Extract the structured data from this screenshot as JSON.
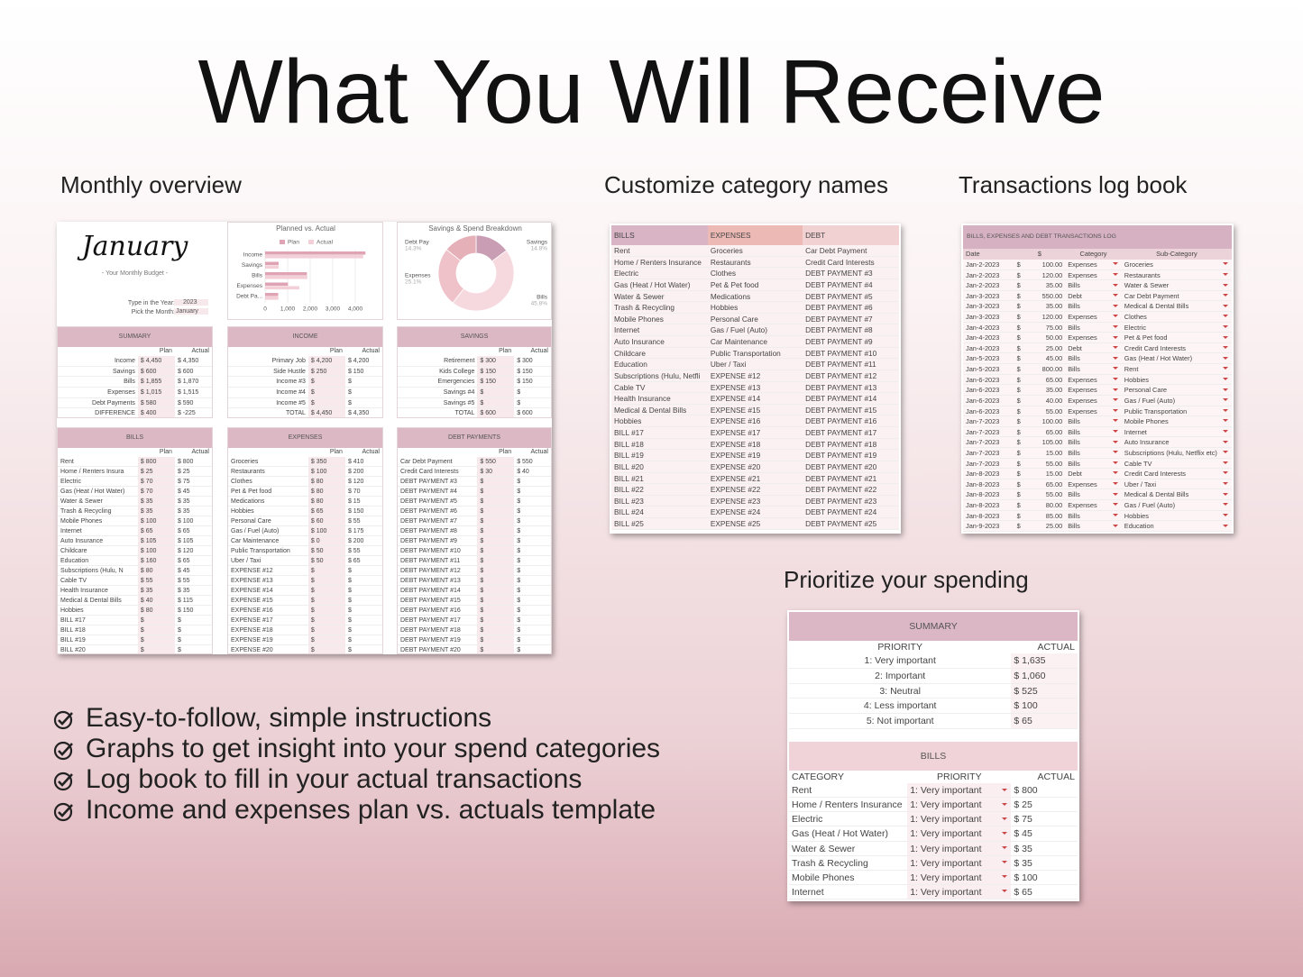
{
  "header": {
    "title": "What You Will Receive"
  },
  "monthly_overview": {
    "label": "Monthly overview",
    "card": {
      "month": "January",
      "subtitle": "- Your Monthly Budget -",
      "year_label": "Type in the Year:",
      "year": "2023",
      "month_label": "Pick the Month:",
      "month_value": "January"
    },
    "plan_chart": {
      "title": "Planned vs. Actual",
      "categories": [
        "Income",
        "Savings",
        "Bills",
        "Expenses",
        "Debt Pa..."
      ],
      "series": [
        {
          "name": "Plan",
          "color": "#dfa3b3",
          "values": [
            4450,
            600,
            1855,
            1015,
            580
          ]
        },
        {
          "name": "Actual",
          "color": "#f3cfd7",
          "values": [
            4350,
            600,
            1870,
            1515,
            590
          ]
        }
      ],
      "xlim": [
        0,
        4500
      ],
      "xticks": [
        0,
        {
          "value": 1000,
          "label": "1,000"
        },
        {
          "value": 2000,
          "label": "2,000"
        },
        {
          "value": 3000,
          "label": "3,000"
        },
        {
          "value": 4000,
          "label": "4,000"
        }
      ]
    },
    "breakdown_chart": {
      "title": "Savings & Spend Breakdown",
      "categories": [
        "Savings",
        "Bills",
        "Expenses",
        "Debt Pay"
      ],
      "values": [
        14.8,
        45.8,
        25.1,
        14.3
      ],
      "value_labels": [
        "14.8%",
        "45.8%",
        "25.1%",
        "14.3%"
      ],
      "colors": [
        "#c99db4",
        "#f6d9de",
        "#efc2c9",
        "#e6b0b8"
      ]
    },
    "summary": {
      "title": "SUMMARY",
      "columns": [
        "Plan",
        "Actual"
      ],
      "rows": [
        [
          "Income",
          "$ 4,450",
          "$ 4,350"
        ],
        [
          "Savings",
          "$ 600",
          "$ 600"
        ],
        [
          "Bills",
          "$ 1,855",
          "$ 1,870"
        ],
        [
          "Expenses",
          "$ 1,015",
          "$ 1,515"
        ],
        [
          "Debt Payments",
          "$ 580",
          "$ 590"
        ],
        [
          "DIFFERENCE",
          "$ 400",
          "$ -225"
        ]
      ]
    },
    "income": {
      "title": "INCOME",
      "columns": [
        "Plan",
        "Actual"
      ],
      "rows": [
        [
          "Primary Job",
          "$ 4,200",
          "$ 4,200"
        ],
        [
          "Side Hustle",
          "$ 250",
          "$ 150"
        ],
        [
          "Income #3",
          "$",
          "$"
        ],
        [
          "Income #4",
          "$",
          "$"
        ],
        [
          "Income #5",
          "$",
          "$"
        ],
        [
          "TOTAL",
          "$ 4,450",
          "$ 4,350"
        ]
      ]
    },
    "savings": {
      "title": "SAVINGS",
      "columns": [
        "Plan",
        "Actual"
      ],
      "rows": [
        [
          "Retirement",
          "$ 300",
          "$ 300"
        ],
        [
          "Kids College",
          "$ 150",
          "$ 150"
        ],
        [
          "Emergencies",
          "$ 150",
          "$ 150"
        ],
        [
          "Savings #4",
          "$",
          "$"
        ],
        [
          "Savings #5",
          "$",
          "$"
        ],
        [
          "TOTAL",
          "$ 600",
          "$ 600"
        ]
      ]
    },
    "bills": {
      "title": "BILLS",
      "columns": [
        "Plan",
        "Actual"
      ],
      "rows": [
        [
          "Rent",
          "$ 800",
          "$ 800"
        ],
        [
          "Home / Renters Insura",
          "$ 25",
          "$ 25"
        ],
        [
          "Electric",
          "$ 70",
          "$ 75"
        ],
        [
          "Gas (Heat / Hot Water)",
          "$ 70",
          "$ 45"
        ],
        [
          "Water & Sewer",
          "$ 35",
          "$ 35"
        ],
        [
          "Trash & Recycling",
          "$ 35",
          "$ 35"
        ],
        [
          "Mobile Phones",
          "$ 100",
          "$ 100"
        ],
        [
          "Internet",
          "$ 65",
          "$ 65"
        ],
        [
          "Auto Insurance",
          "$ 105",
          "$ 105"
        ],
        [
          "Childcare",
          "$ 100",
          "$ 120"
        ],
        [
          "Education",
          "$ 160",
          "$ 65"
        ],
        [
          "Subscriptions (Hulu, N",
          "$ 80",
          "$ 45"
        ],
        [
          "Cable TV",
          "$ 55",
          "$ 55"
        ],
        [
          "Health Insurance",
          "$ 35",
          "$ 35"
        ],
        [
          "Medical & Dental Bills",
          "$ 40",
          "$ 115"
        ],
        [
          "Hobbies",
          "$ 80",
          "$ 150"
        ],
        [
          "BILL #17",
          "$",
          "$"
        ],
        [
          "BILL #18",
          "$",
          "$"
        ],
        [
          "BILL #19",
          "$",
          "$"
        ],
        [
          "BILL #20",
          "$",
          "$"
        ]
      ]
    },
    "expenses": {
      "title": "EXPENSES",
      "columns": [
        "Plan",
        "Actual"
      ],
      "rows": [
        [
          "Groceries",
          "$ 350",
          "$ 410"
        ],
        [
          "Restaurants",
          "$ 100",
          "$ 200"
        ],
        [
          "Clothes",
          "$ 80",
          "$ 120"
        ],
        [
          "Pet & Pet food",
          "$ 80",
          "$ 70"
        ],
        [
          "Medications",
          "$ 80",
          "$ 15"
        ],
        [
          "Hobbies",
          "$ 65",
          "$ 150"
        ],
        [
          "Personal Care",
          "$ 60",
          "$ 55"
        ],
        [
          "Gas / Fuel (Auto)",
          "$ 100",
          "$ 175"
        ],
        [
          "Car Maintenance",
          "$ 0",
          "$ 200"
        ],
        [
          "Public Transportation",
          "$ 50",
          "$ 55"
        ],
        [
          "Uber / Taxi",
          "$ 50",
          "$ 65"
        ],
        [
          "EXPENSE #12",
          "$",
          "$"
        ],
        [
          "EXPENSE #13",
          "$",
          "$"
        ],
        [
          "EXPENSE #14",
          "$",
          "$"
        ],
        [
          "EXPENSE #15",
          "$",
          "$"
        ],
        [
          "EXPENSE #16",
          "$",
          "$"
        ],
        [
          "EXPENSE #17",
          "$",
          "$"
        ],
        [
          "EXPENSE #18",
          "$",
          "$"
        ],
        [
          "EXPENSE #19",
          "$",
          "$"
        ],
        [
          "EXPENSE #20",
          "$",
          "$"
        ]
      ]
    },
    "debt_payments": {
      "title": "DEBT PAYMENTS",
      "columns": [
        "Plan",
        "Actual"
      ],
      "rows": [
        [
          "Car Debt Payment",
          "$ 550",
          "$ 550"
        ],
        [
          "Credit Card Interests",
          "$ 30",
          "$ 40"
        ],
        [
          "DEBT PAYMENT #3",
          "$",
          "$"
        ],
        [
          "DEBT PAYMENT #4",
          "$",
          "$"
        ],
        [
          "DEBT PAYMENT #5",
          "$",
          "$"
        ],
        [
          "DEBT PAYMENT #6",
          "$",
          "$"
        ],
        [
          "DEBT PAYMENT #7",
          "$",
          "$"
        ],
        [
          "DEBT PAYMENT #8",
          "$",
          "$"
        ],
        [
          "DEBT PAYMENT #9",
          "$",
          "$"
        ],
        [
          "DEBT PAYMENT #10",
          "$",
          "$"
        ],
        [
          "DEBT PAYMENT #11",
          "$",
          "$"
        ],
        [
          "DEBT PAYMENT #12",
          "$",
          "$"
        ],
        [
          "DEBT PAYMENT #13",
          "$",
          "$"
        ],
        [
          "DEBT PAYMENT #14",
          "$",
          "$"
        ],
        [
          "DEBT PAYMENT #15",
          "$",
          "$"
        ],
        [
          "DEBT PAYMENT #16",
          "$",
          "$"
        ],
        [
          "DEBT PAYMENT #17",
          "$",
          "$"
        ],
        [
          "DEBT PAYMENT #18",
          "$",
          "$"
        ],
        [
          "DEBT PAYMENT #19",
          "$",
          "$"
        ],
        [
          "DEBT PAYMENT #20",
          "$",
          "$"
        ]
      ]
    }
  },
  "category_names": {
    "label": "Customize category names",
    "table": {
      "columns": [
        "BILLS",
        "EXPENSES",
        "DEBT"
      ],
      "rows": [
        [
          "Rent",
          "Groceries",
          "Car Debt Payment"
        ],
        [
          "Home / Renters Insurance",
          "Restaurants",
          "Credit Card Interests"
        ],
        [
          "Electric",
          "Clothes",
          "DEBT PAYMENT #3"
        ],
        [
          "Gas (Heat / Hot Water)",
          "Pet & Pet food",
          "DEBT PAYMENT #4"
        ],
        [
          "Water & Sewer",
          "Medications",
          "DEBT PAYMENT #5"
        ],
        [
          "Trash & Recycling",
          "Hobbies",
          "DEBT PAYMENT #6"
        ],
        [
          "Mobile Phones",
          "Personal Care",
          "DEBT PAYMENT #7"
        ],
        [
          "Internet",
          "Gas / Fuel (Auto)",
          "DEBT PAYMENT #8"
        ],
        [
          "Auto Insurance",
          "Car Maintenance",
          "DEBT PAYMENT #9"
        ],
        [
          "Childcare",
          "Public Transportation",
          "DEBT PAYMENT #10"
        ],
        [
          "Education",
          "Uber / Taxi",
          "DEBT PAYMENT #11"
        ],
        [
          "Subscriptions (Hulu, Netfli",
          "EXPENSE #12",
          "DEBT PAYMENT #12"
        ],
        [
          "Cable TV",
          "EXPENSE #13",
          "DEBT PAYMENT #13"
        ],
        [
          "Health Insurance",
          "EXPENSE #14",
          "DEBT PAYMENT #14"
        ],
        [
          "Medical & Dental Bills",
          "EXPENSE #15",
          "DEBT PAYMENT #15"
        ],
        [
          "Hobbies",
          "EXPENSE #16",
          "DEBT PAYMENT #16"
        ],
        [
          "BILL #17",
          "EXPENSE #17",
          "DEBT PAYMENT #17"
        ],
        [
          "BILL #18",
          "EXPENSE #18",
          "DEBT PAYMENT #18"
        ],
        [
          "BILL #19",
          "EXPENSE #19",
          "DEBT PAYMENT #19"
        ],
        [
          "BILL #20",
          "EXPENSE #20",
          "DEBT PAYMENT #20"
        ],
        [
          "BILL #21",
          "EXPENSE #21",
          "DEBT PAYMENT #21"
        ],
        [
          "BILL #22",
          "EXPENSE #22",
          "DEBT PAYMENT #22"
        ],
        [
          "BILL #23",
          "EXPENSE #23",
          "DEBT PAYMENT #23"
        ],
        [
          "BILL #24",
          "EXPENSE #24",
          "DEBT PAYMENT #24"
        ],
        [
          "BILL #25",
          "EXPENSE #25",
          "DEBT PAYMENT #25"
        ]
      ]
    }
  },
  "transactions": {
    "label": "Transactions log book",
    "currency": "$",
    "table": {
      "title": "BILLS, EXPENSES AND DEBT TRANSACTIONS LOG",
      "columns": [
        "Date",
        "$",
        "Category",
        "Sub-Category"
      ],
      "rows": [
        [
          "Jan-2-2023",
          "100.00",
          "Expenses",
          "Groceries"
        ],
        [
          "Jan-2-2023",
          "120.00",
          "Expenses",
          "Restaurants"
        ],
        [
          "Jan-2-2023",
          "35.00",
          "Bills",
          "Water & Sewer"
        ],
        [
          "Jan-3-2023",
          "550.00",
          "Debt",
          "Car Debt Payment"
        ],
        [
          "Jan-3-2023",
          "35.00",
          "Bills",
          "Medical & Dental Bills"
        ],
        [
          "Jan-3-2023",
          "120.00",
          "Expenses",
          "Clothes"
        ],
        [
          "Jan-4-2023",
          "75.00",
          "Bills",
          "Electric"
        ],
        [
          "Jan-4-2023",
          "50.00",
          "Expenses",
          "Pet & Pet food"
        ],
        [
          "Jan-4-2023",
          "25.00",
          "Debt",
          "Credit Card Interests"
        ],
        [
          "Jan-5-2023",
          "45.00",
          "Bills",
          "Gas (Heat / Hot Water)"
        ],
        [
          "Jan-5-2023",
          "800.00",
          "Bills",
          "Rent"
        ],
        [
          "Jan-6-2023",
          "65.00",
          "Expenses",
          "Hobbies"
        ],
        [
          "Jan-6-2023",
          "35.00",
          "Expenses",
          "Personal Care"
        ],
        [
          "Jan-6-2023",
          "40.00",
          "Expenses",
          "Gas / Fuel (Auto)"
        ],
        [
          "Jan-6-2023",
          "55.00",
          "Expenses",
          "Public Transportation"
        ],
        [
          "Jan-7-2023",
          "100.00",
          "Bills",
          "Mobile Phones"
        ],
        [
          "Jan-7-2023",
          "65.00",
          "Bills",
          "Internet"
        ],
        [
          "Jan-7-2023",
          "105.00",
          "Bills",
          "Auto Insurance"
        ],
        [
          "Jan-7-2023",
          "15.00",
          "Bills",
          "Subscriptions (Hulu, Netflix etc)"
        ],
        [
          "Jan-7-2023",
          "55.00",
          "Bills",
          "Cable TV"
        ],
        [
          "Jan-8-2023",
          "15.00",
          "Debt",
          "Credit Card Interests"
        ],
        [
          "Jan-8-2023",
          "65.00",
          "Expenses",
          "Uber / Taxi"
        ],
        [
          "Jan-8-2023",
          "55.00",
          "Bills",
          "Medical & Dental Bills"
        ],
        [
          "Jan-8-2023",
          "80.00",
          "Expenses",
          "Gas / Fuel (Auto)"
        ],
        [
          "Jan-8-2023",
          "85.00",
          "Bills",
          "Hobbies"
        ],
        [
          "Jan-9-2023",
          "25.00",
          "Bills",
          "Education"
        ]
      ]
    }
  },
  "priorities": {
    "label": "Prioritize your spending",
    "summary": {
      "title": "SUMMARY",
      "columns": [
        "PRIORITY",
        "ACTUAL"
      ],
      "rows": [
        [
          "1: Very important",
          "$ 1,635"
        ],
        [
          "2: Important",
          "$ 1,060"
        ],
        [
          "3: Neutral",
          "$ 525"
        ],
        [
          "4: Less important",
          "$ 100"
        ],
        [
          "5: Not important",
          "$ 65"
        ]
      ]
    },
    "bills": {
      "title": "BILLS",
      "columns": [
        "CATEGORY",
        "PRIORITY",
        "ACTUAL"
      ],
      "rows": [
        [
          "Rent",
          "1: Very important",
          "$ 800"
        ],
        [
          "Home / Renters Insurance",
          "1: Very important",
          "$ 25"
        ],
        [
          "Electric",
          "1: Very important",
          "$ 75"
        ],
        [
          "Gas (Heat / Hot Water)",
          "1: Very important",
          "$ 45"
        ],
        [
          "Water & Sewer",
          "1: Very important",
          "$ 35"
        ],
        [
          "Trash & Recycling",
          "1: Very important",
          "$ 35"
        ],
        [
          "Mobile Phones",
          "1: Very important",
          "$ 100"
        ],
        [
          "Internet",
          "1: Very important",
          "$ 65"
        ]
      ]
    }
  },
  "features": [
    "Easy-to-follow, simple instructions",
    "Graphs to get insight into your spend categories",
    "Log book to fill in your actual transactions",
    "Income and expenses plan vs. actuals template"
  ]
}
